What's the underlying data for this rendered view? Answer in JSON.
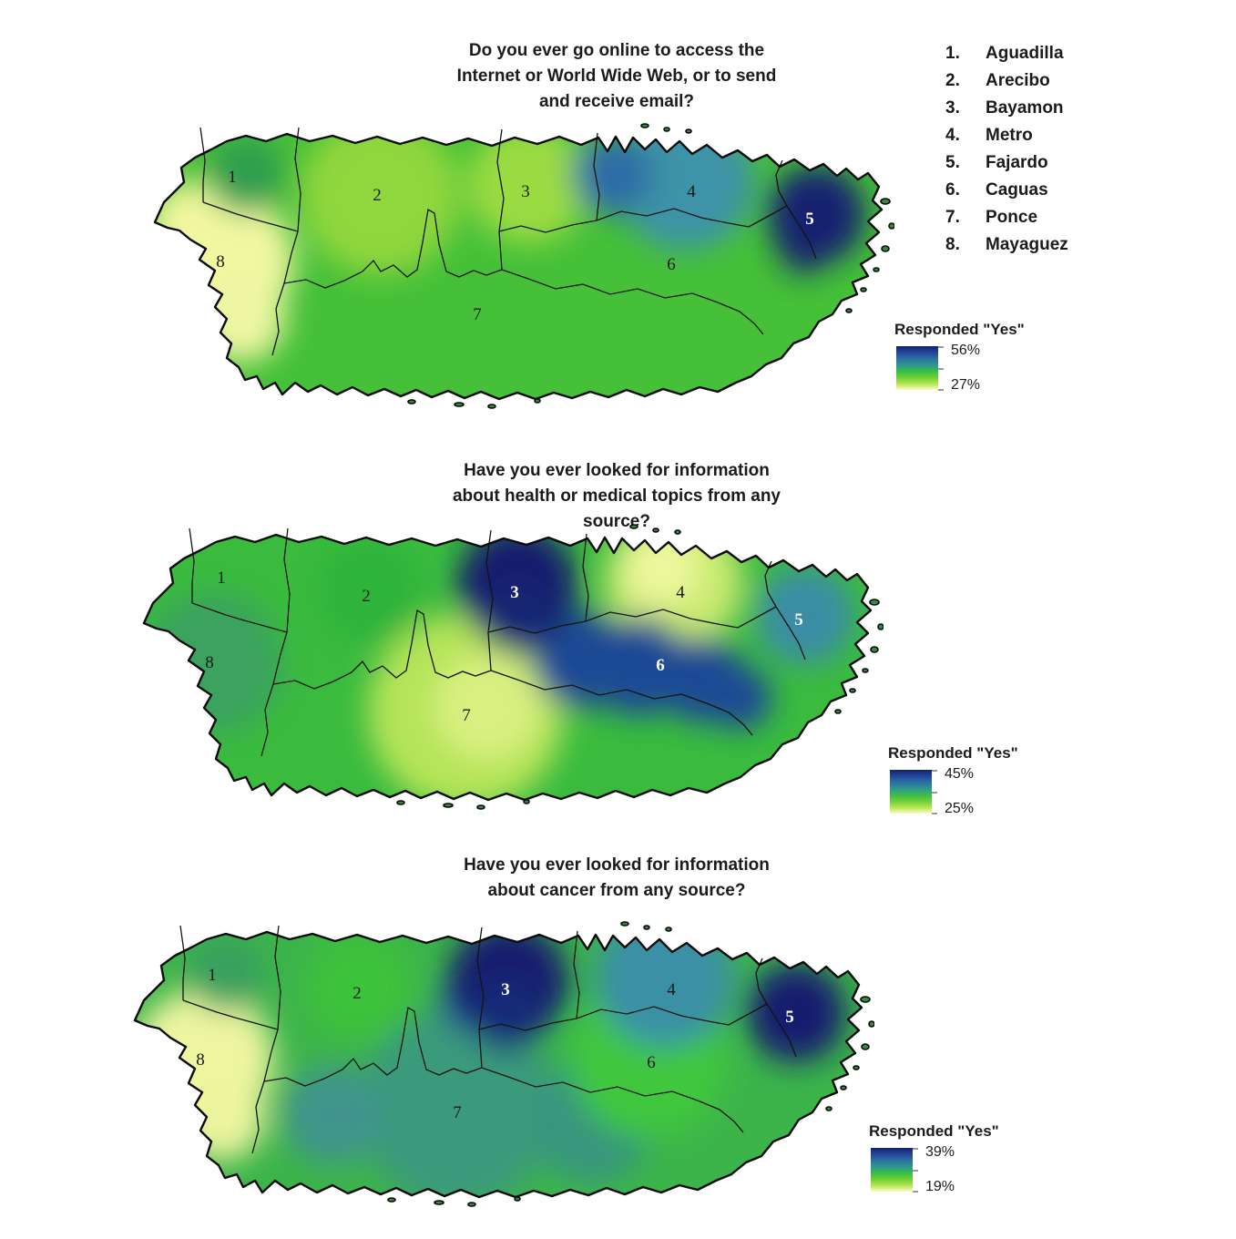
{
  "region_index": {
    "items": [
      {
        "num": "1.",
        "name": "Aguadilla"
      },
      {
        "num": "2.",
        "name": "Arecibo"
      },
      {
        "num": "3.",
        "name": "Bayamon"
      },
      {
        "num": "4.",
        "name": "Metro"
      },
      {
        "num": "5.",
        "name": "Fajardo"
      },
      {
        "num": "6.",
        "name": "Caguas"
      },
      {
        "num": "7.",
        "name": "Ponce"
      },
      {
        "num": "8.",
        "name": "Mayaguez"
      }
    ]
  },
  "colormap": [
    "#141f6e",
    "#23479a",
    "#2c6fa4",
    "#2f968f",
    "#39bb4a",
    "#6ccf34",
    "#b4e455",
    "#fcfdc0"
  ],
  "maps": [
    {
      "title": "Do you ever go online to access the Internet or World Wide Web, or to send and receive email?",
      "title_lines": [
        "Do you ever go online to access the",
        "Internet or World Wide Web, or to send",
        "and receive email?"
      ],
      "legend": {
        "title": "Responded \"Yes\"",
        "max": "56%",
        "min": "27%"
      },
      "base_color": "#45c038",
      "surface": [
        {
          "at": "2",
          "color": "#90d63e"
        },
        {
          "at": "3",
          "color": "#9bdb42"
        },
        {
          "at": "nw",
          "color": "#e9f496"
        },
        {
          "at": "8",
          "color": "#f1f7a0"
        },
        {
          "at": "8south",
          "color": "#eef6a2"
        },
        {
          "at": "1core",
          "color": "#2e9e50"
        },
        {
          "at": "4",
          "color": "#3e93a8"
        },
        {
          "at": "4west",
          "color": "#2d6da6"
        },
        {
          "at": "5",
          "color": "#19246f"
        },
        {
          "at": "5tail",
          "color": "#19246f"
        }
      ],
      "labels": [
        {
          "text": "1",
          "tone": "dark"
        },
        {
          "text": "2",
          "tone": "dark"
        },
        {
          "text": "3",
          "tone": "dark"
        },
        {
          "text": "4",
          "tone": "dark"
        },
        {
          "text": "5",
          "tone": "light"
        },
        {
          "text": "6",
          "tone": "dark"
        },
        {
          "text": "7",
          "tone": "dark"
        },
        {
          "text": "8",
          "tone": "dark"
        }
      ]
    },
    {
      "title": "Have you ever looked for information about health or medical topics from any source?",
      "title_lines": [
        "Have you ever looked for information",
        "about health or medical topics from any",
        "source?"
      ],
      "legend": {
        "title": "Responded \"Yes\"",
        "max": "45%",
        "min": "25%"
      },
      "base_color": "#3abb3e",
      "surface": [
        {
          "at": "8",
          "color": "#3aa35e"
        },
        {
          "at": "7",
          "color": "#b5e459"
        },
        {
          "at": "7core",
          "color": "#d9f080"
        },
        {
          "at": "2core",
          "color": "#2fb43a"
        },
        {
          "at": "4",
          "color": "#c9ea70"
        },
        {
          "at": "4core",
          "color": "#eef79e"
        },
        {
          "at": "6band",
          "color": "#1e4a94"
        },
        {
          "at": "3",
          "color": "#141f6e"
        },
        {
          "at": "3south",
          "color": "#172573"
        },
        {
          "at": "5",
          "color": "#3a8da4"
        }
      ],
      "labels": [
        {
          "text": "1",
          "tone": "dark"
        },
        {
          "text": "2",
          "tone": "dark"
        },
        {
          "text": "3",
          "tone": "light"
        },
        {
          "text": "4",
          "tone": "dark"
        },
        {
          "text": "5",
          "tone": "light"
        },
        {
          "text": "6",
          "tone": "light"
        },
        {
          "text": "7",
          "tone": "dark"
        },
        {
          "text": "8",
          "tone": "dark"
        }
      ]
    },
    {
      "title": "Have you ever looked for information about cancer from any source?",
      "title_lines": [
        "Have you ever looked for information",
        "about cancer from any source?"
      ],
      "legend": {
        "title": "Responded \"Yes\"",
        "max": "39%",
        "min": "19%"
      },
      "base_color": "#3cb44a",
      "surface": [
        {
          "at": "7",
          "color": "#3b9a7c"
        },
        {
          "at": "7west",
          "color": "#3f948c"
        },
        {
          "at": "7east",
          "color": "#37967e"
        },
        {
          "at": "6",
          "color": "#3fc73c"
        },
        {
          "at": "8",
          "color": "#eef5a0"
        },
        {
          "at": "8south",
          "color": "#ecf49e"
        },
        {
          "at": "1core",
          "color": "#37a05e"
        },
        {
          "at": "2core",
          "color": "#3ec23a"
        },
        {
          "at": "2east",
          "color": "#2b5d9e"
        },
        {
          "at": "4",
          "color": "#3a90a5"
        },
        {
          "at": "3",
          "color": "#141f6e"
        },
        {
          "at": "3south",
          "color": "#182a78"
        },
        {
          "at": "5",
          "color": "#141f6e"
        }
      ],
      "labels": [
        {
          "text": "1",
          "tone": "dark"
        },
        {
          "text": "2",
          "tone": "dark"
        },
        {
          "text": "3",
          "tone": "light"
        },
        {
          "text": "4",
          "tone": "dark"
        },
        {
          "text": "5",
          "tone": "light"
        },
        {
          "text": "6",
          "tone": "dark"
        },
        {
          "text": "7",
          "tone": "dark"
        },
        {
          "text": "8",
          "tone": "dark"
        }
      ]
    }
  ]
}
